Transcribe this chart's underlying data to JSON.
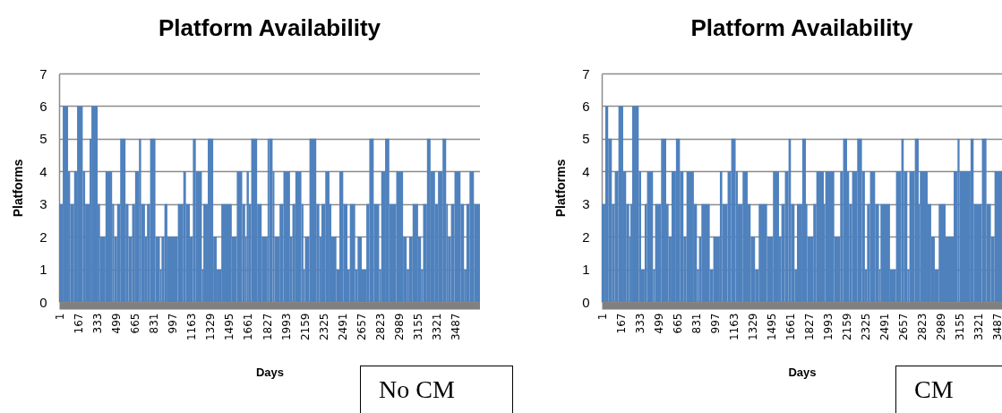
{
  "chart_data": [
    {
      "type": "histogram",
      "title": "Platform Availability",
      "xlabel": "Days",
      "ylabel": "Platforms",
      "color": "#4f81bd",
      "grid": "y",
      "xlim": [
        0,
        3700
      ],
      "xticks": [
        1,
        167,
        333,
        499,
        665,
        831,
        997,
        1163,
        1329,
        1495,
        1661,
        1827,
        1993,
        2159,
        2325,
        2491,
        2657,
        2823,
        2989,
        3155,
        3321,
        3487
      ],
      "ylim": [
        0,
        7
      ],
      "yticks": [
        0,
        1,
        2,
        3,
        4,
        5,
        6,
        7
      ],
      "bins": [
        0,
        32,
        79,
        97,
        132,
        158,
        208,
        229,
        268,
        284,
        339,
        360,
        408,
        466,
        484,
        510,
        537,
        584,
        610,
        642,
        668,
        702,
        721,
        755,
        773,
        800,
        847,
        886,
        900,
        926,
        952,
        1044,
        1092,
        1115,
        1149,
        1176,
        1202,
        1255,
        1268,
        1307,
        1355,
        1386,
        1426,
        1518,
        1562,
        1610,
        1636,
        1649,
        1668,
        1689,
        1741,
        1781,
        1833,
        1846,
        1877,
        1893,
        1938,
        1972,
        2030,
        2051,
        2077,
        2130,
        2148,
        2161,
        2201,
        2261,
        2288,
        2306,
        2340,
        2377,
        2393,
        2438,
        2464,
        2498,
        2535,
        2556,
        2603,
        2624,
        2661,
        2701,
        2727,
        2766,
        2814,
        2832,
        2866,
        2903,
        2964,
        3024,
        3056,
        3077,
        3108,
        3156,
        3182,
        3200,
        3234,
        3266,
        3305,
        3331,
        3371,
        3403,
        3418,
        3445,
        3476,
        3529,
        3560,
        3581,
        3608,
        3647,
        3700
      ],
      "values": [
        3,
        6,
        4,
        3,
        4,
        6,
        4,
        3,
        5,
        6,
        3,
        2,
        4,
        3,
        2,
        3,
        5,
        3,
        2,
        3,
        4,
        5,
        3,
        2,
        3,
        5,
        2,
        1,
        2,
        3,
        2,
        3,
        4,
        3,
        2,
        5,
        4,
        1,
        3,
        5,
        2,
        1,
        3,
        2,
        4,
        3,
        2,
        4,
        3,
        5,
        3,
        2,
        5,
        5,
        4,
        2,
        3,
        4,
        2,
        3,
        4,
        3,
        1,
        2,
        5,
        3,
        2,
        3,
        4,
        3,
        2,
        1,
        4,
        3,
        1,
        3,
        1,
        2,
        1,
        3,
        5,
        3,
        1,
        4,
        5,
        3,
        4,
        2,
        1,
        2,
        3,
        2,
        1,
        3,
        5,
        4,
        3,
        4,
        5,
        3,
        2,
        3,
        4,
        3,
        1,
        3,
        4,
        3
      ],
      "annotations": [
        "No CM"
      ]
    },
    {
      "type": "histogram",
      "title": "Platform Availability",
      "xlabel": "Days",
      "ylabel": "Platforms",
      "color": "#4f81bd",
      "grid": "y",
      "xlim": [
        0,
        3527
      ],
      "xticks": [
        1,
        167,
        333,
        499,
        665,
        831,
        997,
        1163,
        1329,
        1495,
        1661,
        1827,
        1993,
        2159,
        2325,
        2491,
        2657,
        2823,
        2989,
        3155,
        3321,
        3487
      ],
      "ylim": [
        0,
        7
      ],
      "yticks": [
        0,
        1,
        2,
        3,
        4,
        5,
        6,
        7
      ],
      "bins": [
        0,
        31,
        57,
        89,
        115,
        147,
        189,
        215,
        242,
        252,
        268,
        326,
        347,
        378,
        399,
        452,
        470,
        523,
        568,
        589,
        615,
        654,
        689,
        720,
        747,
        812,
        839,
        857,
        878,
        952,
        983,
        1041,
        1062,
        1109,
        1141,
        1180,
        1199,
        1241,
        1286,
        1312,
        1351,
        1383,
        1457,
        1509,
        1562,
        1583,
        1614,
        1646,
        1667,
        1699,
        1720,
        1767,
        1799,
        1812,
        1864,
        1891,
        1957,
        1970,
        2049,
        2101,
        2127,
        2162,
        2180,
        2206,
        2251,
        2293,
        2319,
        2338,
        2364,
        2409,
        2443,
        2456,
        2540,
        2593,
        2640,
        2661,
        2693,
        2711,
        2759,
        2793,
        2803,
        2872,
        2903,
        2935,
        2969,
        3030,
        3101,
        3135,
        3153,
        3250,
        3277,
        3350,
        3390,
        3429,
        3461,
        3527
      ],
      "values": [
        3,
        6,
        5,
        3,
        4,
        6,
        4,
        3,
        2,
        3,
        6,
        4,
        1,
        3,
        4,
        1,
        3,
        5,
        3,
        2,
        4,
        5,
        4,
        2,
        4,
        3,
        1,
        2,
        3,
        1,
        2,
        4,
        3,
        4,
        5,
        4,
        3,
        4,
        3,
        2,
        1,
        3,
        2,
        4,
        2,
        3,
        4,
        5,
        3,
        1,
        3,
        5,
        3,
        2,
        3,
        4,
        3,
        4,
        2,
        4,
        5,
        4,
        3,
        4,
        5,
        4,
        1,
        3,
        4,
        3,
        1,
        3,
        1,
        4,
        5,
        4,
        1,
        4,
        5,
        3,
        4,
        3,
        2,
        1,
        3,
        2,
        4,
        5,
        4,
        5,
        3,
        5,
        3,
        2,
        4
      ],
      "annotations": [
        "CM"
      ]
    }
  ]
}
